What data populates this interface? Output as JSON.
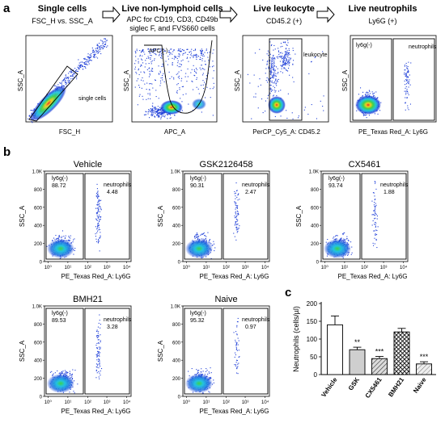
{
  "panel_a": {
    "letter": "a",
    "steps": [
      {
        "title": "Single cells",
        "subtitle": "FSC_H vs. SSC_A",
        "ylabel": "SSC_A",
        "xlabel": "FSC_H",
        "gate_label": "single cells"
      },
      {
        "title": "Live non-lymphoid cells",
        "subtitle_lines": [
          "APC for CD19, CD3, CD49b",
          "siglec F, and FVS660 cells"
        ],
        "ylabel": "SSC_A",
        "xlabel": "APC_A",
        "gate_label": "APC (-)"
      },
      {
        "title": "Live leukocyte",
        "subtitle": "CD45.2 (+)",
        "ylabel": "SSC_A",
        "xlabel": "PerCP_Cy5_A: CD45.2",
        "gate_label": "leukocyte"
      },
      {
        "title": "Live neutrophils",
        "subtitle": "Ly6G (+)",
        "ylabel": "SSC_A",
        "xlabel": "PE_Texas Red_A: Ly6G",
        "gate_labels": [
          "ly6g(-)",
          "neutrophils"
        ]
      }
    ]
  },
  "panel_b": {
    "letter": "b",
    "ylabel": "SSC_A",
    "xlabel": "PE_Texas Red_A: Ly6G",
    "y_ticks": [
      "1.0K",
      "800",
      "600",
      "400",
      "200",
      "0"
    ],
    "x_ticks": [
      "10⁰",
      "10¹",
      "10²",
      "10³",
      "10⁴"
    ],
    "neg_gate_name": "ly6g(-)",
    "pos_gate_name": "neutrophils",
    "plots": [
      {
        "name": "Vehicle",
        "neg": "88.72",
        "pos": "4.48"
      },
      {
        "name": "GSK2126458",
        "neg": "90.31",
        "pos": "2.47"
      },
      {
        "name": "CX5461",
        "neg": "93.74",
        "pos": "1.88"
      },
      {
        "name": "BMH21",
        "neg": "89.53",
        "pos": "3.28"
      },
      {
        "name": "Naive",
        "neg": "95.32",
        "pos": "0.97"
      }
    ]
  },
  "panel_c": {
    "letter": "c",
    "chart_data": {
      "type": "bar",
      "categories": [
        "Vehicle",
        "GSK",
        "CX5461",
        "BMH21",
        "Naive"
      ],
      "values": [
        140,
        70,
        45,
        120,
        30
      ],
      "errors": [
        25,
        7,
        6,
        10,
        6
      ],
      "significance": [
        "",
        "**",
        "***",
        "",
        "***"
      ],
      "ylabel": "Neutrophils (cells/µl)",
      "ylim": [
        0,
        200
      ],
      "yticks": [
        0,
        50,
        100,
        150,
        200
      ],
      "fills": [
        "white",
        "lightgray",
        "hatch",
        "crosshatch",
        "hatch-light"
      ]
    }
  },
  "colors": {
    "density_low": "#1f3fd8",
    "density_mid": "#22c3e0",
    "density_high": "#3fd14a",
    "density_peak": "#f0d020",
    "density_core": "#e8281e"
  }
}
